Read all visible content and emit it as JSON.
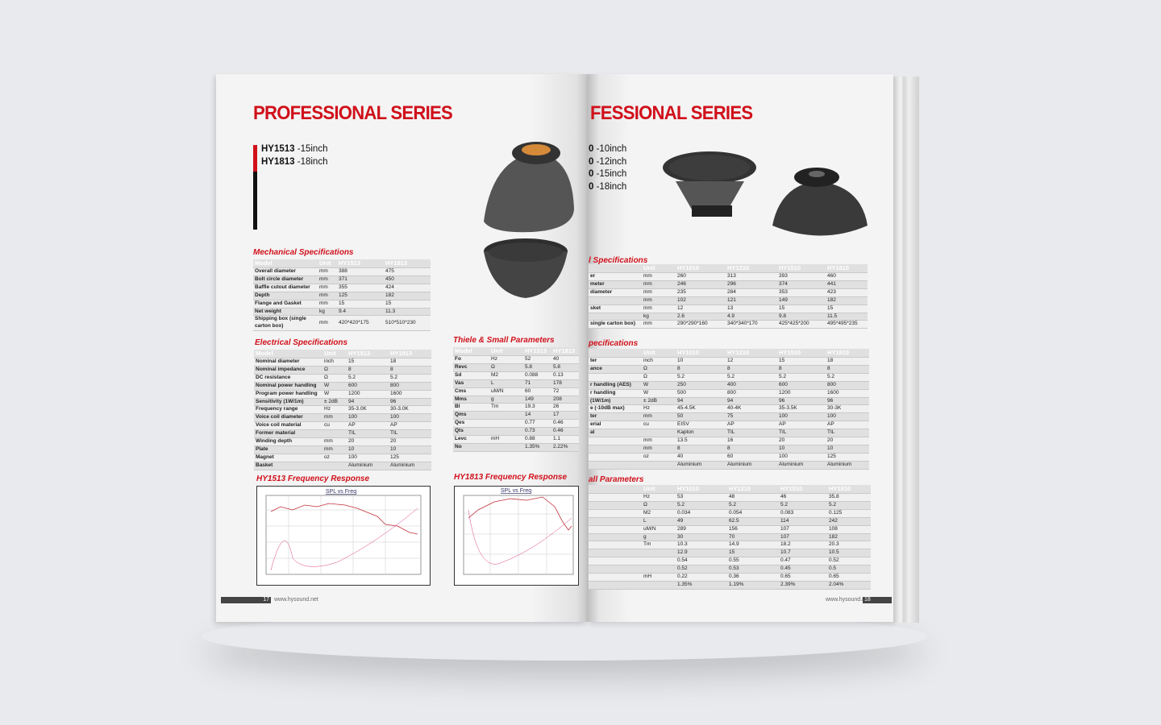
{
  "left_page": {
    "title": "PROFESSIONAL SERIES",
    "models": [
      {
        "model": "HY1513",
        "size": " -15inch"
      },
      {
        "model": "HY1813",
        "size": " -18inch"
      }
    ],
    "mechanical": {
      "title": "Mechanical Specifications",
      "headers": [
        "Model",
        "Unit",
        "HY1513",
        "HY1813"
      ],
      "rows": [
        [
          "Overall diameter",
          "mm",
          "388",
          "475"
        ],
        [
          "Bolt circle diameter",
          "mm",
          "371",
          "450"
        ],
        [
          "Baffle cutout diameter",
          "mm",
          "355",
          "424"
        ],
        [
          "Depth",
          "mm",
          "125",
          "182"
        ],
        [
          "Flange and Gasket",
          "mm",
          "15",
          "15"
        ],
        [
          "Net weight",
          "kg",
          "9.4",
          "11.3"
        ],
        [
          "Shipping box (single carton box)",
          "mm",
          "420*420*175",
          "510*510*230"
        ]
      ]
    },
    "electrical": {
      "title": "Electrical Specifications",
      "headers": [
        "Model",
        "Unit",
        "HY1513",
        "HY1813"
      ],
      "rows": [
        [
          "Nominal diameter",
          "inch",
          "15",
          "18"
        ],
        [
          "Nominal impedance",
          "Ω",
          "8",
          "8"
        ],
        [
          "DC resistance",
          "Ω",
          "5.2",
          "5.2"
        ],
        [
          "Nominal power handling",
          "W",
          "600",
          "800"
        ],
        [
          "Program power handling",
          "W",
          "1200",
          "1600"
        ],
        [
          "Sensitivity (1W/1m)",
          "± 2dB",
          "94",
          "96"
        ],
        [
          "Frequency range",
          "Hz",
          "35-3.0K",
          "30-3.0K"
        ],
        [
          "Voice coil diameter",
          "mm",
          "100",
          "100"
        ],
        [
          "Voice coil material",
          "cu",
          "AP",
          "AP"
        ],
        [
          "Former material",
          null,
          "TIL",
          "TIL"
        ],
        [
          "Winding depth",
          "mm",
          "20",
          "20"
        ],
        [
          "Plate",
          "mm",
          "10",
          "10"
        ],
        [
          "Magnet",
          "oz",
          "100",
          "125"
        ],
        [
          "Basket",
          null,
          "Aluminium",
          "Aluminium"
        ]
      ]
    },
    "thiele": {
      "title": "Thiele & Small Parameters",
      "headers": [
        "Model",
        "Unit",
        "HY1513",
        "HY1813"
      ],
      "rows": [
        [
          "Fo",
          "Hz",
          "52",
          "40"
        ],
        [
          "Revc",
          "Ω",
          "5.8",
          "5.8"
        ],
        [
          "Sd",
          "M2",
          "0.088",
          "0.13"
        ],
        [
          "Vas",
          "L",
          "71",
          "178"
        ],
        [
          "Cms",
          "uM/N",
          "60",
          "72"
        ],
        [
          "Mms",
          "g",
          "149",
          "208"
        ],
        [
          "Bl",
          "Tm",
          "19.3",
          "26"
        ],
        [
          "Qms",
          null,
          "14",
          "17"
        ],
        [
          "Qes",
          null,
          "0.77",
          "0.46"
        ],
        [
          "Qts",
          null,
          "0.73",
          "0.46"
        ],
        [
          "Levc",
          "mH",
          "0.88",
          "1.1"
        ],
        [
          "No",
          null,
          "1.35%",
          "2.22%"
        ]
      ]
    },
    "responses": [
      {
        "title": "HY1513 Frequency Response",
        "chart_label": "SPL vs Freq"
      },
      {
        "title": "HY1813 Frequency Response",
        "chart_label": "SPL vs Freq"
      }
    ],
    "footer": {
      "page": "17",
      "url": "www.hysound.net"
    }
  },
  "right_page": {
    "title": "FESSIONAL SERIES",
    "models": [
      {
        "model": "0",
        "size": " -10inch"
      },
      {
        "model": "0",
        "size": " -12inch"
      },
      {
        "model": "0",
        "size": " -15inch"
      },
      {
        "model": "0",
        "size": " -18inch"
      }
    ],
    "mechanical": {
      "title": "l Specifications",
      "headers": [
        null,
        "Unit",
        "HY1010",
        "HY1210",
        "HY1510",
        "HY1810"
      ],
      "rows": [
        [
          "er",
          "mm",
          "260",
          "313",
          "393",
          "460"
        ],
        [
          "meter",
          "mm",
          "246",
          "296",
          "374",
          "441"
        ],
        [
          "diameter",
          "mm",
          "235",
          "284",
          "353",
          "423"
        ],
        [
          null,
          "mm",
          "102",
          "121",
          "149",
          "182"
        ],
        [
          "sket",
          "mm",
          "12",
          "13",
          "15",
          "15"
        ],
        [
          null,
          "kg",
          "2.6",
          "4.9",
          "9.8",
          "11.5"
        ],
        [
          "single carton box)",
          "mm",
          "290*290*160",
          "340*340*170",
          "425*425*200",
          "495*495*235"
        ]
      ]
    },
    "electrical": {
      "title": "pecifications",
      "headers": [
        null,
        "Unit",
        "HY1010",
        "HY1210",
        "HY1510",
        "HY1810"
      ],
      "rows": [
        [
          "ter",
          "inch",
          "10",
          "12",
          "15",
          "18"
        ],
        [
          "ance",
          "Ω",
          "8",
          "8",
          "8",
          "8"
        ],
        [
          null,
          "Ω",
          "5.2",
          "5.2",
          "5.2",
          "5.2"
        ],
        [
          "r handling (AES)",
          "W",
          "250",
          "400",
          "600",
          "800"
        ],
        [
          "r handling",
          "W",
          "500",
          "800",
          "1200",
          "1600"
        ],
        [
          "(1W/1m)",
          "± 2dB",
          "94",
          "94",
          "96",
          "96"
        ],
        [
          "e (-10dB max)",
          "Hz",
          "45-4.5K",
          "40-4K",
          "35-3.5K",
          "30-3K"
        ],
        [
          "ter",
          "mm",
          "50",
          "75",
          "100",
          "100"
        ],
        [
          "erial",
          "cu",
          "EISV",
          "AP",
          "AP",
          "AP"
        ],
        [
          "al",
          null,
          "Kapton",
          "TIL",
          "TIL",
          "TIL"
        ],
        [
          null,
          "mm",
          "13.5",
          "16",
          "20",
          "20"
        ],
        [
          null,
          "mm",
          "8",
          "8",
          "10",
          "10"
        ],
        [
          null,
          "oz",
          "40",
          "60",
          "100",
          "125"
        ],
        [
          null,
          null,
          "Aluminium",
          "Aluminium",
          "Aluminium",
          "Aluminium"
        ]
      ]
    },
    "thiele": {
      "title": "all Parameters",
      "headers": [
        null,
        "Unit",
        "HY1010",
        "HY1210",
        "HY1510",
        "HY1810"
      ],
      "rows": [
        [
          null,
          "Hz",
          "53",
          "48",
          "46",
          "35.8"
        ],
        [
          null,
          "Ω",
          "5.2",
          "5.2",
          "5.2",
          "5.2"
        ],
        [
          null,
          "M2",
          "0.034",
          "0.054",
          "0.083",
          "0.125"
        ],
        [
          null,
          "L",
          "49",
          "62.5",
          "114",
          "242"
        ],
        [
          null,
          "uM/N",
          "289",
          "156",
          "107",
          "108"
        ],
        [
          null,
          "g",
          "30",
          "70",
          "107",
          "182"
        ],
        [
          null,
          "Tm",
          "10.3",
          "14.9",
          "18.2",
          "20.3"
        ],
        [
          null,
          null,
          "12.9",
          "15",
          "10.7",
          "10.5"
        ],
        [
          null,
          null,
          "0.54",
          "0.55",
          "0.47",
          "0.52"
        ],
        [
          null,
          null,
          "0.52",
          "0.53",
          "0.45",
          "0.5"
        ],
        [
          null,
          "mH",
          "0.22",
          "0.36",
          "0.65",
          "0.65"
        ],
        [
          null,
          null,
          "1.35%",
          "1.19%",
          "2.39%",
          "2.04%"
        ]
      ]
    },
    "footer": {
      "page": "18",
      "url": "www.hysound.net"
    }
  }
}
